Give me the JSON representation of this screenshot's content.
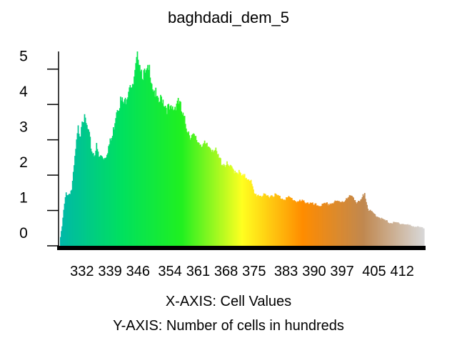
{
  "chart_data": {
    "type": "bar",
    "title": "baghdadi_dem_5",
    "xlabel": "X-AXIS: Cell Values",
    "ylabel": "Y-AXIS: Number of cells in hundreds",
    "x_tick_labels": [
      "332",
      "339",
      "346",
      "354",
      "361",
      "368",
      "375",
      "383",
      "390",
      "397",
      "405",
      "412"
    ],
    "x_tick_values": [
      332,
      339,
      346,
      354,
      361,
      368,
      375,
      383,
      390,
      397,
      405,
      412
    ],
    "y_tick_labels": [
      "0",
      "1",
      "2",
      "3",
      "4",
      "5"
    ],
    "xlim": [
      326.5,
      417.5
    ],
    "ylim": [
      0,
      5.5
    ],
    "grid": false,
    "legend": "none",
    "color_ramp": [
      "#00b8a8",
      "#00e060",
      "#20f020",
      "#ffff20",
      "#ff8c00",
      "#c08850",
      "#d8d8d8"
    ],
    "bin_width": 0.2,
    "profile_x": [
      326.6,
      327.0,
      327.4,
      328.0,
      328.6,
      329.4,
      329.8,
      330.4,
      331.0,
      331.6,
      332.0,
      332.8,
      333.6,
      334.4,
      335.0,
      335.6,
      336.2,
      337.0,
      337.6,
      338.0,
      338.6,
      339.6,
      340.6,
      341.6,
      342.6,
      343.4,
      344.0,
      344.6,
      345.2,
      346.0,
      346.8,
      347.6,
      348.2,
      349.0,
      349.6,
      350.2,
      351.0,
      352.0,
      353.0,
      354.0,
      355.0,
      356.0,
      357.0,
      358.0,
      359.0,
      360.0,
      361.0,
      362.0,
      363.0,
      364.0,
      365.0,
      366.0,
      367.0,
      368.0,
      369.0,
      370.0,
      371.0,
      372.0,
      373.0,
      374.0,
      375.0,
      376.0,
      378.0,
      380.0,
      382.0,
      384.0,
      386.0,
      388.0,
      390.0,
      392.0,
      394.0,
      396.0,
      398.0,
      399.6,
      400.6,
      401.6,
      402.6,
      403.6,
      405.0,
      407.0,
      409.0,
      411.0,
      413.0,
      415.0,
      417.4
    ],
    "profile_y": [
      0.25,
      0.55,
      1.0,
      1.5,
      1.45,
      1.6,
      2.0,
      2.7,
      3.3,
      3.2,
      3.7,
      3.5,
      3.2,
      2.7,
      2.6,
      2.8,
      2.5,
      2.55,
      2.5,
      2.6,
      2.8,
      3.1,
      3.9,
      4.1,
      4.0,
      4.4,
      4.7,
      4.4,
      4.8,
      5.5,
      5.0,
      4.8,
      4.85,
      5.0,
      4.55,
      4.35,
      4.0,
      4.2,
      3.95,
      3.8,
      3.9,
      4.2,
      3.7,
      3.4,
      3.15,
      3.05,
      2.95,
      2.9,
      2.8,
      2.8,
      2.75,
      2.5,
      2.35,
      2.3,
      2.2,
      2.15,
      2.1,
      1.95,
      1.95,
      1.9,
      1.45,
      1.45,
      1.4,
      1.45,
      1.35,
      1.35,
      1.25,
      1.25,
      1.15,
      1.15,
      1.2,
      1.25,
      1.3,
      1.45,
      1.2,
      1.25,
      1.5,
      1.0,
      0.9,
      0.75,
      0.65,
      0.65,
      0.6,
      0.55,
      0.5
    ]
  }
}
